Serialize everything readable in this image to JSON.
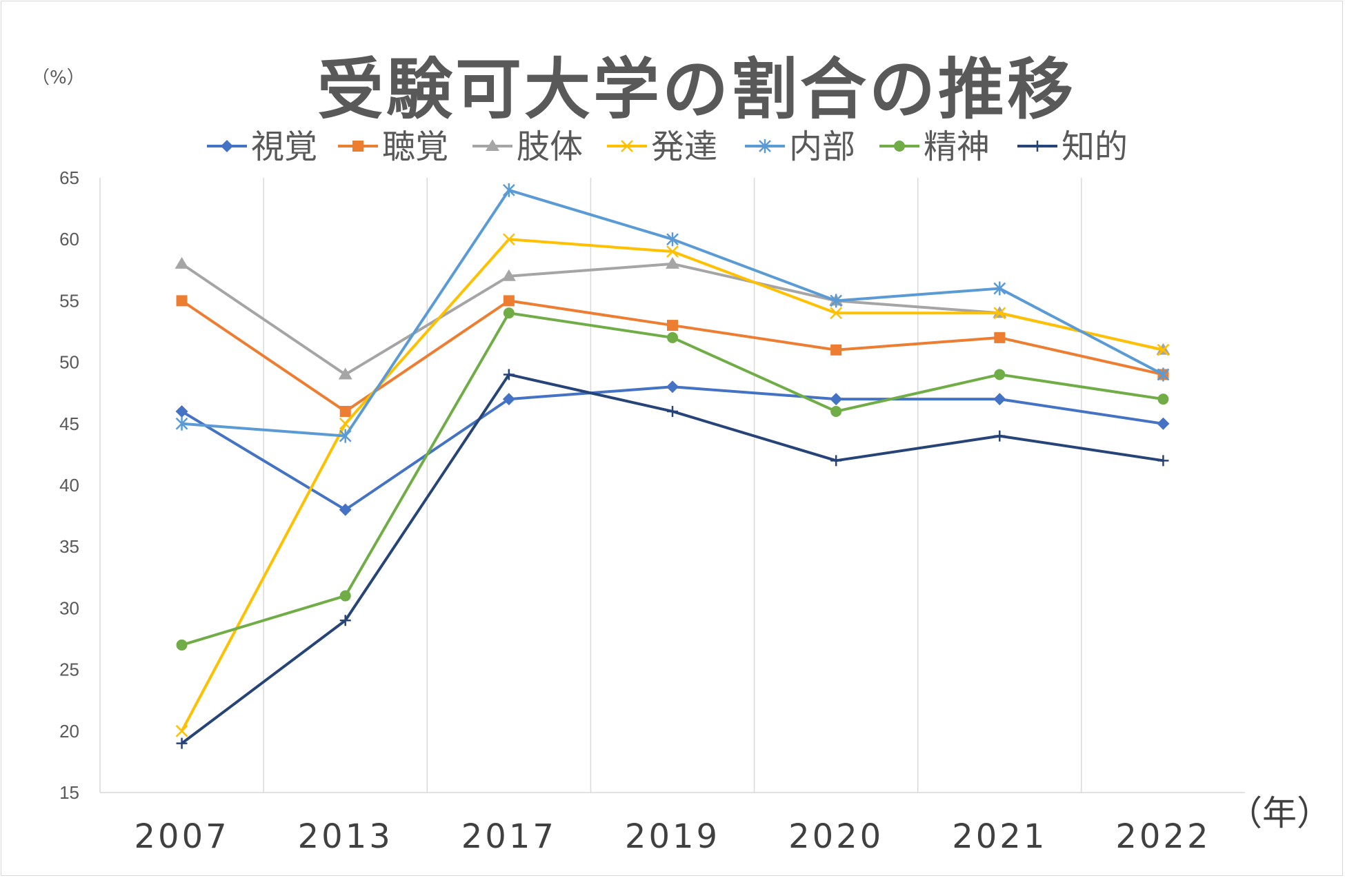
{
  "chart_data": {
    "type": "line",
    "title": "受験可大学の割合の推移",
    "ylabel": "（%）",
    "xlabel": "（年）",
    "categories": [
      "2007",
      "2013",
      "2017",
      "2019",
      "2020",
      "2021",
      "2022"
    ],
    "ylim": [
      15,
      65
    ],
    "yticks": [
      15,
      20,
      25,
      30,
      35,
      40,
      45,
      50,
      55,
      60,
      65
    ],
    "grid": "vertical",
    "legend_position": "top",
    "series": [
      {
        "name": "視覚",
        "color": "#4472c4",
        "marker": "diamond",
        "values": [
          46,
          38,
          47,
          48,
          47,
          47,
          45
        ]
      },
      {
        "name": "聴覚",
        "color": "#ed7d31",
        "marker": "square",
        "values": [
          55,
          46,
          55,
          53,
          51,
          52,
          49
        ]
      },
      {
        "name": "肢体",
        "color": "#a5a5a5",
        "marker": "triangle",
        "values": [
          58,
          49,
          57,
          58,
          55,
          54,
          51
        ]
      },
      {
        "name": "発達",
        "color": "#ffc000",
        "marker": "x",
        "values": [
          20,
          45,
          60,
          59,
          54,
          54,
          51
        ]
      },
      {
        "name": "内部",
        "color": "#5b9bd5",
        "marker": "star",
        "values": [
          45,
          44,
          64,
          60,
          55,
          56,
          49
        ]
      },
      {
        "name": "精神",
        "color": "#70ad47",
        "marker": "circle",
        "values": [
          27,
          31,
          54,
          52,
          46,
          49,
          47
        ]
      },
      {
        "name": "知的",
        "color": "#264478",
        "marker": "plus",
        "values": [
          19,
          29,
          49,
          46,
          42,
          44,
          42
        ]
      }
    ]
  }
}
